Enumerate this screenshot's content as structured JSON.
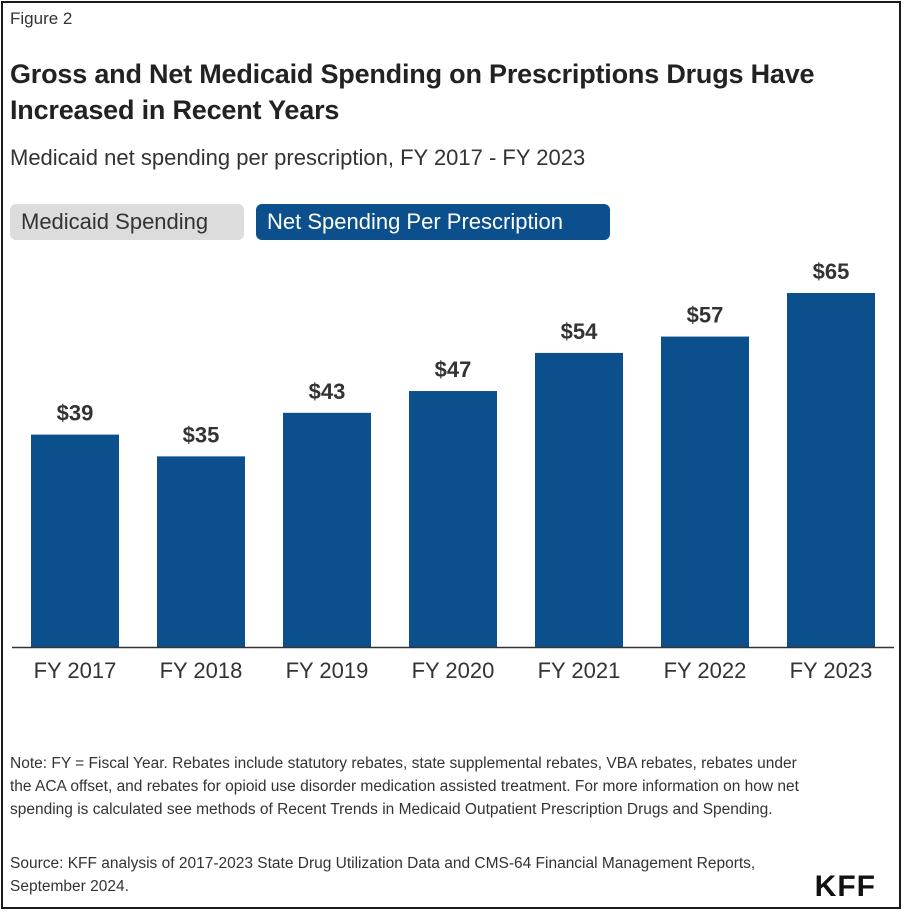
{
  "figure_label": "Figure 2",
  "title": "Gross and Net Medicaid Spending on Prescriptions Drugs Have Increased in Recent Years",
  "subtitle": "Medicaid net spending per prescription, FY 2017 - FY 2023",
  "toggles": [
    {
      "label": "Medicaid Spending",
      "active": false
    },
    {
      "label": "Net Spending Per Prescription",
      "active": true
    }
  ],
  "chart_data": {
    "type": "bar",
    "categories": [
      "FY 2017",
      "FY 2018",
      "FY 2019",
      "FY 2020",
      "FY 2021",
      "FY 2022",
      "FY 2023"
    ],
    "values": [
      39,
      35,
      43,
      47,
      54,
      57,
      65
    ],
    "value_labels": [
      "$39",
      "$35",
      "$43",
      "$47",
      "$54",
      "$57",
      "$65"
    ],
    "ylim": [
      0,
      65
    ],
    "grid": false,
    "bar_color": "#0b4f8c",
    "axis_color": "#333333"
  },
  "note": "Note: FY = Fiscal Year. Rebates include statutory rebates, state supplemental rebates, VBA rebates, rebates under the ACA offset, and rebates for opioid use disorder medication assisted treatment. For more information on how net spending is calculated see methods of Recent Trends in Medicaid Outpatient Prescription Drugs and Spending.",
  "source": "Source: KFF analysis of 2017-2023 State Drug Utilization Data and CMS-64 Financial Management Reports, September 2024.",
  "logo_text": "KFF"
}
